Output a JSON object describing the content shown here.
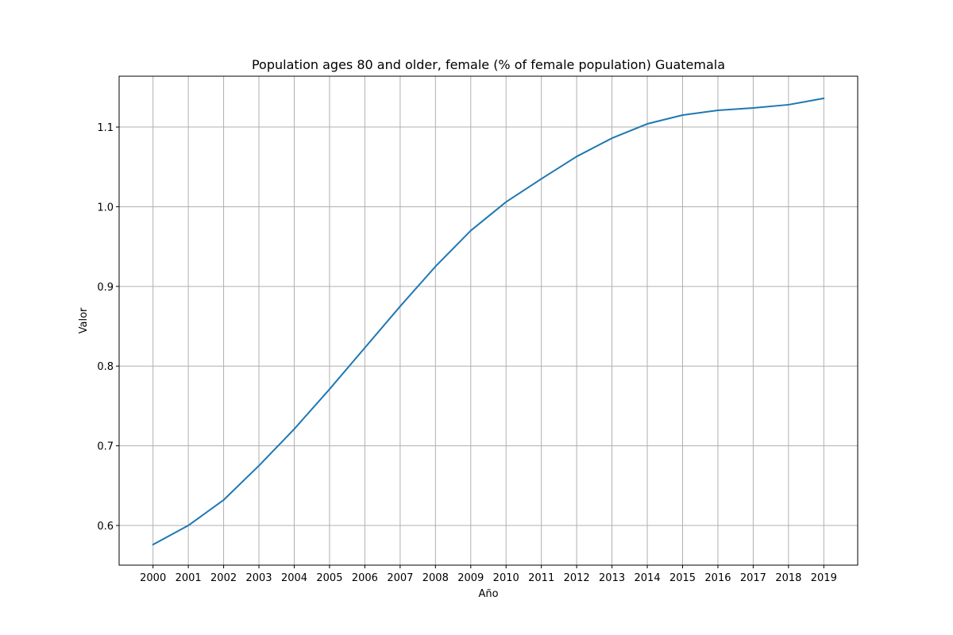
{
  "chart_data": {
    "type": "line",
    "title": "Population ages 80 and older, female (% of female population) Guatemala",
    "xlabel": "Año",
    "ylabel": "Valor",
    "x": [
      2000,
      2001,
      2002,
      2003,
      2004,
      2005,
      2006,
      2007,
      2008,
      2009,
      2010,
      2011,
      2012,
      2013,
      2014,
      2015,
      2016,
      2017,
      2018,
      2019
    ],
    "x_tick_labels": [
      "2000",
      "2001",
      "2002",
      "2003",
      "2004",
      "2005",
      "2006",
      "2007",
      "2008",
      "2009",
      "2010",
      "2011",
      "2012",
      "2013",
      "2014",
      "2015",
      "2016",
      "2017",
      "2018",
      "2019"
    ],
    "series": [
      {
        "values": [
          0.576,
          0.6,
          0.632,
          0.675,
          0.721,
          0.771,
          0.823,
          0.875,
          0.925,
          0.97,
          1.006,
          1.035,
          1.063,
          1.086,
          1.104,
          1.115,
          1.121,
          1.124,
          1.128,
          1.136
        ],
        "color": "#1f77b4"
      }
    ],
    "xlim": [
      1999.04,
      2019.96
    ],
    "ylim": [
      0.5502,
      1.1638
    ],
    "y_ticks": [
      0.6,
      0.7,
      0.8,
      0.9,
      1.0,
      1.1
    ],
    "y_tick_labels": [
      "0.6",
      "0.7",
      "0.8",
      "0.9",
      "1.0",
      "1.1"
    ],
    "grid": true,
    "legend": false
  }
}
